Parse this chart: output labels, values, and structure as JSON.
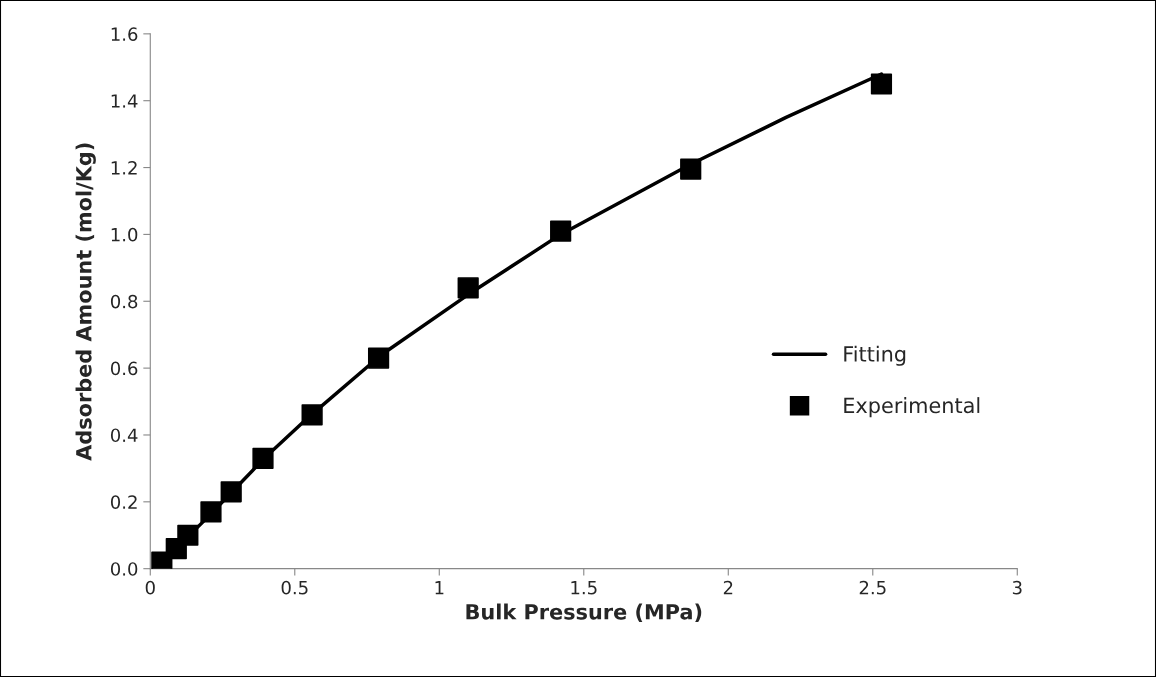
{
  "chart_data": {
    "type": "scatter",
    "xlabel": "Bulk Pressure (MPa)",
    "ylabel": "Adsorbed Amount (mol/Kg)",
    "xlim": [
      0,
      3
    ],
    "xticks": [
      0,
      0.5,
      1,
      1.5,
      2,
      2.5,
      3
    ],
    "ylim": [
      0,
      1.6
    ],
    "yticks": [
      {
        "value": 0,
        "label": "0.0"
      },
      {
        "value": 0.2,
        "label": "0.2"
      },
      {
        "value": 0.4,
        "label": "0.4"
      },
      {
        "value": 0.6,
        "label": "0.6"
      },
      {
        "value": 0.8,
        "label": "0.8"
      },
      {
        "value": 1.0,
        "label": "1.0"
      },
      {
        "value": 1.2,
        "label": "1.2"
      },
      {
        "value": 1.4,
        "label": "1.4"
      },
      {
        "value": 1.6,
        "label": "1.6"
      }
    ],
    "grid": false,
    "legend": "right",
    "series": [
      {
        "name": "Fitting",
        "type": "line",
        "color": "#000000",
        "marker": "none",
        "line_style": "solid",
        "x": [
          0.03,
          0.1,
          0.2,
          0.3,
          0.4,
          0.55,
          0.8,
          1.1,
          1.42,
          1.87,
          2.2,
          2.53
        ],
        "values": [
          0.015,
          0.07,
          0.155,
          0.245,
          0.335,
          0.455,
          0.64,
          0.82,
          1.0,
          1.21,
          1.35,
          1.48
        ]
      },
      {
        "name": "Experimental",
        "color": "#000000",
        "marker": "square",
        "x": [
          0.04,
          0.09,
          0.13,
          0.21,
          0.28,
          0.39,
          0.56,
          0.79,
          1.1,
          1.42,
          1.87,
          2.53
        ],
        "values": [
          0.02,
          0.06,
          0.1,
          0.17,
          0.23,
          0.33,
          0.46,
          0.63,
          0.84,
          1.01,
          1.195,
          1.45
        ]
      }
    ]
  }
}
